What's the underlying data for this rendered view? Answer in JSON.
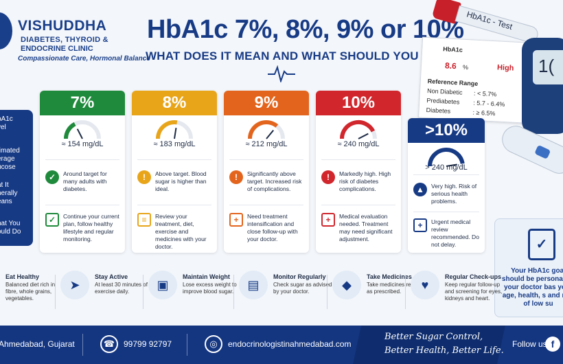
{
  "clinic": {
    "name": "VISHUDDHA",
    "line1": "DIABETES, THYROID &",
    "line2": "ENDOCRINE CLINIC",
    "tagline": "Compassionate Care, Hormonal Balance"
  },
  "header": {
    "title": "HbA1c 7%, 8%, 9% or 10%",
    "subtitle": "WHAT DOES IT MEAN AND WHAT SHOULD YOU DO?"
  },
  "report": {
    "tube_label": "HbA1c - Test",
    "test_name": "HbA1c",
    "value": "8.6",
    "unit": "%",
    "flag": "High",
    "ref_title": "Reference Range",
    "rows": [
      {
        "label": "Non Diabetic",
        "range": ": < 5.7%"
      },
      {
        "label": "Prediabetes",
        "range": ": 5.7 - 6.4%"
      },
      {
        "label": "Diabetes",
        "range": ": ≥ 6.5%"
      }
    ],
    "meter_reading": "1("
  },
  "side_labels": {
    "level": "bA1c\nvel",
    "glucose": "timated\nerage\nucose",
    "means": "at It\nnerally\neans",
    "todo": "hat You\nould Do"
  },
  "cards": [
    {
      "level": "7%",
      "color": "#1f8a3b",
      "mgdl": "≈ 154 mg/dL",
      "gauge": 0.35,
      "mean_icon": "check-icon",
      "mean": "Around target for many adults with diabetes.",
      "do_icon": "clipboard-check-icon",
      "todo": "Continue your current plan, follow healthy lifestyle and regular monitoring."
    },
    {
      "level": "8%",
      "color": "#e8a51a",
      "mgdl": "≈ 183 mg/dL",
      "gauge": 0.55,
      "mean_icon": "warning-icon",
      "mean": "Above target. Blood sugar is higher than ideal.",
      "do_icon": "clipboard-list-icon",
      "todo": "Review your treatment, diet, exercise and medicines with your doctor."
    },
    {
      "level": "9%",
      "color": "#e3651d",
      "mgdl": "≈ 212 mg/dL",
      "gauge": 0.72,
      "mean_icon": "alert-icon",
      "mean": "Significantly above target. Increased risk of complications.",
      "do_icon": "doctor-icon",
      "todo": "Need treatment intensification and close follow-up with your doctor."
    },
    {
      "level": "10%",
      "color": "#d0262c",
      "mgdl": "≈ 240 mg/dL",
      "gauge": 0.85,
      "mean_icon": "alert-icon",
      "mean": "Markedly high. High risk of diabetes complications.",
      "do_icon": "medical-shield-icon",
      "todo": "Medical evaluation needed. Treatment may need significant adjustment."
    },
    {
      "level": ">10%",
      "color": "#173a85",
      "mgdl": "> 240 mg/dL",
      "gauge": 0.95,
      "mean_icon": "siren-icon",
      "mean": "Very high. Risk of serious health problems.",
      "do_icon": "doctor-icon",
      "todo": "Urgent medical review recommended. Do not delay."
    }
  ],
  "goal": {
    "text": "Your HbA1c goal should be personal by your doctor bas your age, health, s and risk of low su"
  },
  "tips": [
    {
      "icon": "apple-icon",
      "title": "Eat Healthy",
      "text": "Balanced diet rich in fibre, whole grains, vegetables."
    },
    {
      "icon": "running-icon",
      "title": "Stay Active",
      "text": "At least 30 minutes of exercise daily."
    },
    {
      "icon": "scale-icon",
      "title": "Maintain Weight",
      "text": "Lose excess weight to improve blood sugar."
    },
    {
      "icon": "glucometer-icon",
      "title": "Monitor Regularly",
      "text": "Check sugar as advised by your doctor."
    },
    {
      "icon": "pills-icon",
      "title": "Take Medicines",
      "text": "Take medicines regularly as prescribed."
    },
    {
      "icon": "heart-hand-icon",
      "title": "Regular Check-ups",
      "text": "Keep regular follow-up and screening for eyes, kidneys and heart."
    }
  ],
  "footer": {
    "location": "Ahmedabad, Gujarat",
    "phone": "99799 92797",
    "website": "endocrinologistinahmedabad.com",
    "slogan1": "Better Sugar Control,",
    "slogan2": "Better Health, Better Life.",
    "follow": "Follow us"
  }
}
